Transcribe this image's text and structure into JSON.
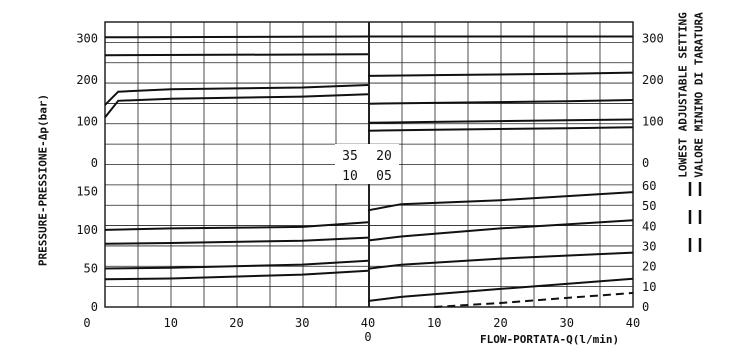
{
  "chart_data": [
    {
      "type": "line",
      "panel": "upper-left",
      "ylabel": "PRESSURE-PRESSIONE-Δp(bar)",
      "y_ticks": [
        "300",
        "200",
        "100",
        "0"
      ],
      "ylim": [
        0,
        340
      ],
      "xlim": [
        0,
        40
      ],
      "series": [
        {
          "x": [
            0,
            40
          ],
          "y": [
            303,
            305
          ]
        },
        {
          "x": [
            0,
            40
          ],
          "y": [
            260,
            262
          ]
        },
        {
          "x": [
            0,
            2,
            10,
            30,
            40
          ],
          "y": [
            140,
            172,
            178,
            182,
            188
          ]
        },
        {
          "x": [
            0,
            2,
            10,
            30,
            40
          ],
          "y": [
            110,
            150,
            155,
            160,
            166
          ]
        }
      ]
    },
    {
      "type": "line",
      "panel": "upper-right",
      "y_ticks": [
        "300",
        "200",
        "100",
        "0"
      ],
      "ylim": [
        0,
        340
      ],
      "xlim": [
        0,
        40
      ],
      "series": [
        {
          "x": [
            0,
            40
          ],
          "y": [
            305,
            305
          ]
        },
        {
          "x": [
            0,
            10,
            30,
            40
          ],
          "y": [
            210,
            212,
            215,
            218
          ]
        },
        {
          "x": [
            0,
            10,
            30,
            40
          ],
          "y": [
            143,
            145,
            149,
            152
          ]
        },
        {
          "x": [
            0,
            10,
            30,
            40
          ],
          "y": [
            97,
            99,
            103,
            105
          ]
        },
        {
          "x": [
            0,
            10,
            30,
            40
          ],
          "y": [
            78,
            80,
            84,
            86
          ]
        }
      ]
    },
    {
      "type": "line",
      "panel": "lower-left",
      "y_ticks": [
        "150",
        "100",
        "50",
        "0"
      ],
      "ylim": [
        0,
        170
      ],
      "xlim": [
        0,
        40
      ],
      "x_ticks": [
        "0",
        "10",
        "20",
        "30",
        "40"
      ],
      "series": [
        {
          "x": [
            0,
            10,
            30,
            40
          ],
          "y": [
            100,
            102,
            104,
            110
          ]
        },
        {
          "x": [
            0,
            10,
            30,
            40
          ],
          "y": [
            82,
            83,
            86,
            90
          ]
        },
        {
          "x": [
            0,
            10,
            30,
            40
          ],
          "y": [
            50,
            51,
            55,
            60
          ]
        },
        {
          "x": [
            0,
            10,
            30,
            40
          ],
          "y": [
            36,
            37,
            42,
            47
          ]
        }
      ]
    },
    {
      "type": "line",
      "panel": "lower-right",
      "ylim": [
        0,
        65
      ],
      "xlim": [
        0,
        40
      ],
      "y_ticks": [
        "60",
        "50",
        "40",
        "30",
        "20",
        "10",
        "0"
      ],
      "x_ticks": [
        "0",
        "10",
        "20",
        "30",
        "40"
      ],
      "xlabel": "FLOW-PORTATA-Q(l/min)",
      "series": [
        {
          "x": [
            0,
            5,
            20,
            40
          ],
          "y": [
            48,
            51,
            53,
            57
          ]
        },
        {
          "x": [
            0,
            5,
            20,
            40
          ],
          "y": [
            33,
            35,
            39,
            43
          ]
        },
        {
          "x": [
            0,
            5,
            20,
            40
          ],
          "y": [
            19,
            21,
            24,
            27
          ]
        },
        {
          "x": [
            0,
            5,
            20,
            40
          ],
          "y": [
            3,
            5,
            9,
            14
          ]
        },
        {
          "x": [
            10,
            20,
            40
          ],
          "y": [
            0,
            2,
            7
          ],
          "style": "dashed"
        }
      ]
    }
  ],
  "annotations": {
    "code_35": "35",
    "code_20": "20",
    "code_10": "10",
    "code_05": "05"
  },
  "legend": {
    "line1": "LOWEST ADJUSTABLE SETTING",
    "line2": "VALORE MINIMO DI TARATURA"
  },
  "colors": {
    "line": "#111111",
    "grid": "#222222",
    "background": "#ffffff"
  }
}
